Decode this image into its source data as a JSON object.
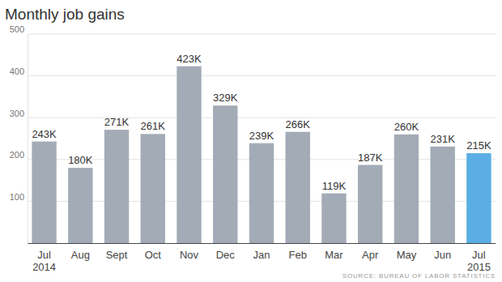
{
  "chart_data": {
    "type": "bar",
    "title": "Monthly job gains",
    "categories": [
      "Jul\n2014",
      "Aug",
      "Sept",
      "Oct",
      "Nov",
      "Dec",
      "Jan",
      "Feb",
      "Mar",
      "Apr",
      "May",
      "Jun",
      "Jul\n2015"
    ],
    "values": [
      243,
      180,
      271,
      261,
      423,
      329,
      239,
      266,
      119,
      187,
      260,
      231,
      215
    ],
    "value_labels": [
      "243K",
      "180K",
      "271K",
      "261K",
      "423K",
      "329K",
      "239K",
      "266K",
      "119K",
      "187K",
      "260K",
      "231K",
      "215K"
    ],
    "colors": [
      "#a3acb6",
      "#a3acb6",
      "#a3acb6",
      "#a3acb6",
      "#a3acb6",
      "#a3acb6",
      "#a3acb6",
      "#a3acb6",
      "#a3acb6",
      "#a3acb6",
      "#a3acb6",
      "#a3acb6",
      "#5aaee3"
    ],
    "ylim": [
      0,
      500
    ],
    "yticks": [
      100,
      200,
      300,
      400,
      500
    ],
    "grid": true,
    "data_labels": true,
    "annotations": [
      "SOURCE: BUREAU OF LABOR STATISTICS"
    ]
  }
}
